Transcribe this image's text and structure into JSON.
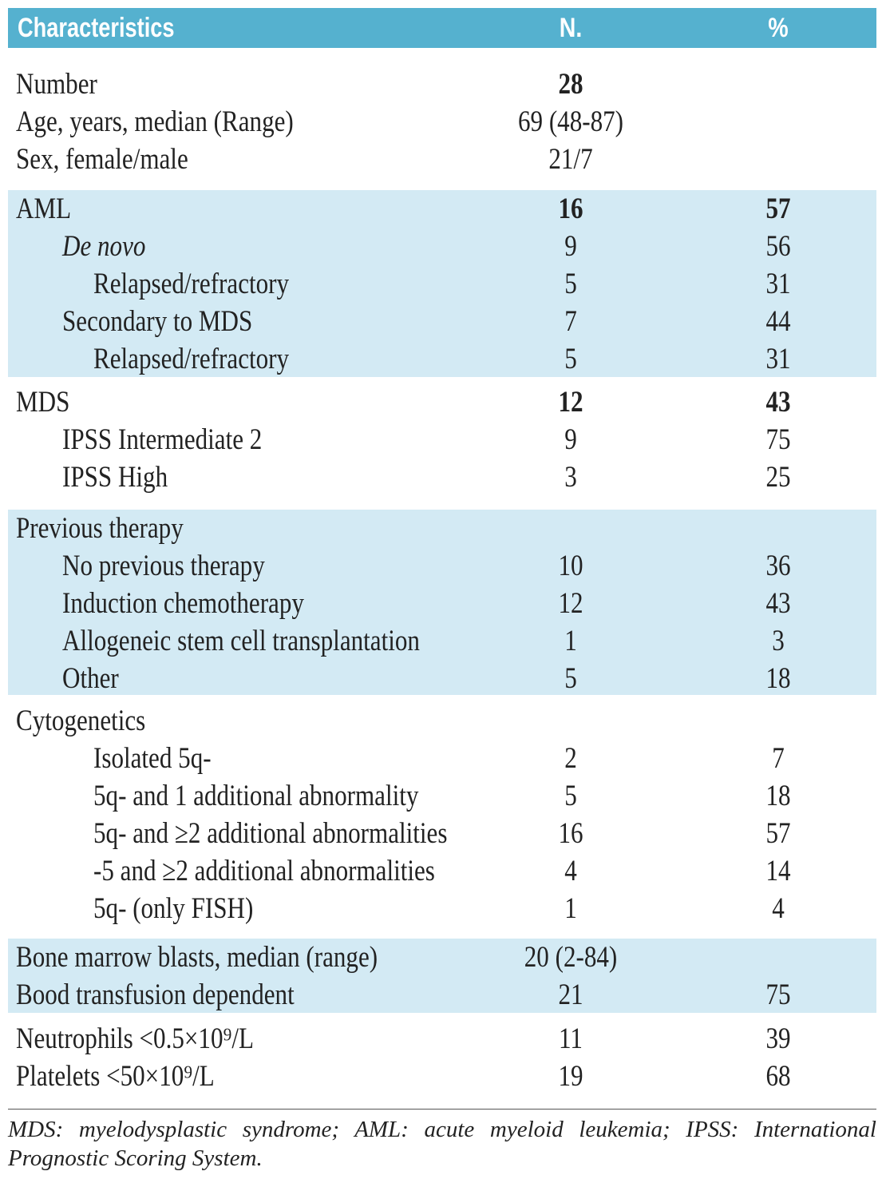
{
  "header": [
    "Characteristics",
    "N.",
    "%"
  ],
  "groups": [
    {
      "rows": [
        [
          "Number",
          "28"
        ],
        [
          "Age, years, median (Range)",
          "69 (48-87)"
        ],
        [
          "Sex, female/male",
          "21/7"
        ]
      ]
    },
    {
      "rows": [
        [
          "AML",
          "16",
          "57"
        ],
        [
          "De novo",
          "9",
          "56"
        ],
        [
          "Relapsed/refractory",
          "5",
          "31"
        ],
        [
          "Secondary to MDS",
          "7",
          "44"
        ],
        [
          "Relapsed/refractory",
          "5",
          "31"
        ]
      ]
    },
    {
      "rows": [
        [
          "MDS",
          "12",
          "43"
        ],
        [
          "IPSS Intermediate 2",
          "9",
          "75"
        ],
        [
          "IPSS High",
          "3",
          "25"
        ]
      ]
    },
    {
      "rows": [
        [
          "Previous therapy"
        ],
        [
          "No previous therapy",
          "10",
          "36"
        ],
        [
          "Induction chemotherapy",
          "12",
          "43"
        ],
        [
          "Allogeneic stem cell transplantation",
          "1",
          "3"
        ],
        [
          "Other",
          "5",
          "18"
        ]
      ]
    },
    {
      "rows": [
        [
          "Cytogenetics"
        ],
        [
          "Isolated 5q-",
          "2",
          "7"
        ],
        [
          "5q- and 1 additional abnormality",
          "5",
          "18"
        ],
        [
          "5q- and ≥2 additional abnormalities",
          "16",
          "57"
        ],
        [
          "-5 and ≥2 additional abnormalities",
          "4",
          "14"
        ],
        [
          "5q- (only FISH)",
          "1",
          "4"
        ]
      ]
    },
    {
      "rows": [
        [
          "Bone marrow blasts, median (range)",
          "20 (2-84)"
        ],
        [
          "Bood transfusion dependent",
          "21",
          "75"
        ]
      ]
    },
    {
      "rows": [
        [
          "Neutrophils <0.5×10⁹/L",
          "11",
          "39"
        ],
        [
          "Platelets <50×10⁹/L",
          "19",
          "68"
        ]
      ]
    }
  ],
  "footnote": "MDS: myelodysplastic syndrome; AML: acute myeloid leukemia; IPSS: International Prognostic Scoring System."
}
